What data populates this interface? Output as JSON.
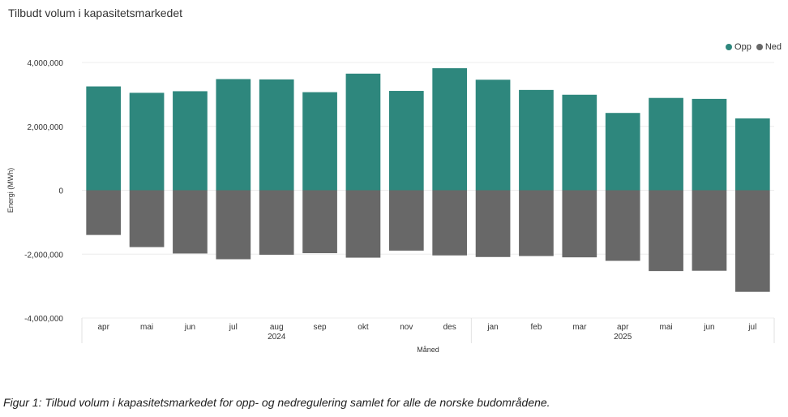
{
  "title": "Tilbudt volum i kapasitetsmarkedet",
  "caption": "Figur 1: Tilbud volum i kapasitetsmarkedet for opp- og nedregulering samlet for alle de norske budområdene.",
  "colors": {
    "opp": "#2e877d",
    "ned": "#686868",
    "grid": "#ececec"
  },
  "chart_data": {
    "type": "bar",
    "stacked": true,
    "categories": [
      "apr",
      "mai",
      "jun",
      "jul",
      "aug",
      "sep",
      "okt",
      "nov",
      "des",
      "jan",
      "feb",
      "mar",
      "apr",
      "mai",
      "jun",
      "jul"
    ],
    "year_labels": [
      "2024",
      "2025"
    ],
    "series": [
      {
        "name": "Opp",
        "values": [
          3250000,
          3050000,
          3100000,
          3480000,
          3470000,
          3070000,
          3650000,
          3110000,
          3820000,
          3460000,
          3140000,
          2990000,
          2420000,
          2890000,
          2860000,
          2250000
        ]
      },
      {
        "name": "Ned",
        "values": [
          -1400000,
          -1780000,
          -1980000,
          -2160000,
          -2020000,
          -1970000,
          -2110000,
          -1890000,
          -2040000,
          -2090000,
          -2060000,
          -2100000,
          -2210000,
          -2530000,
          -2520000,
          -3180000
        ]
      }
    ],
    "xlabel": "Måned",
    "ylabel": "Energi (MWh)",
    "ylim": [
      -4000000,
      4000000
    ],
    "yticks": [
      4000000,
      2000000,
      0,
      -2000000,
      -4000000
    ],
    "ytick_labels": [
      "4,000,000",
      "2,000,000",
      "0",
      "-2,000,000",
      "-4,000,000"
    ],
    "legend_position": "top-right",
    "grid": true
  }
}
